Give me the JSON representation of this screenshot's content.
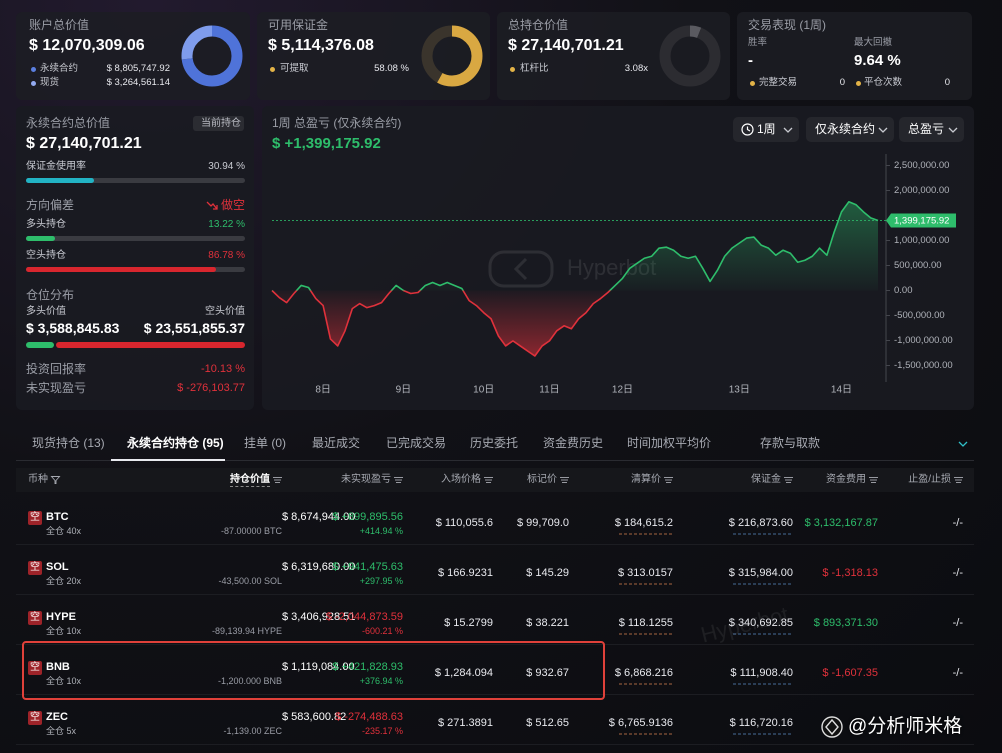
{
  "account": {
    "title": "账户总价值",
    "value": "$ 12,070,309.06",
    "perp_label": "永续合约",
    "perp_value": "$ 8,805,747.92",
    "spot_label": "现货",
    "spot_value": "$ 3,264,561.14"
  },
  "margin": {
    "title": "可用保证金",
    "value": "$ 5,114,376.08",
    "withdrawable_label": "可提取",
    "withdrawable": {
      "value": 58.08,
      "label": "58.08 %"
    }
  },
  "position": {
    "title": "总持仓价值",
    "value": "$ 27,140,701.21",
    "leverage_label": "杠杆比",
    "leverage": "3.08x"
  },
  "performance": {
    "title": "交易表现 (1周)",
    "win_rate_label": "胜率",
    "win_rate": "-",
    "drawdown_label": "最大回撤",
    "drawdown": "9.64 %",
    "trades_label": "完整交易",
    "trades": 0,
    "closes_label": "平仓次数",
    "closes": 0
  },
  "perp": {
    "title": "永续合约总价值",
    "badge": "当前持仓",
    "value": "$ 27,140,701.21",
    "margin_usage_label": "保证金使用率",
    "margin_usage": {
      "value": 30.94,
      "label": "30.94 %"
    },
    "bias_label": "方向偏差",
    "bias": "做空",
    "long_label": "多头持仓",
    "long": {
      "value": 13.22,
      "label": "13.22 %"
    },
    "short_label": "空头持仓",
    "short": {
      "value": 86.78,
      "label": "86.78 %"
    },
    "dist_title": "仓位分布",
    "long_value_label": "多头价值",
    "long_value": "$ 3,588,845.83",
    "short_value_label": "空头价值",
    "short_value": "$ 23,551,855.37",
    "roi_label": "投资回报率",
    "roi": "-10.13 %",
    "upnl_label": "未实现盈亏",
    "upnl": "$ -276,103.77"
  },
  "pnl_chart": {
    "type": "area",
    "title": "1周 总盈亏 (仅永续合约)",
    "total": "$ +1,399,175.92",
    "controls": [
      "1周",
      "仅永续合约",
      "总盈亏"
    ],
    "watermark": "Hyperbot",
    "up_color": "#2ebd6b",
    "down_color": "#e0313b",
    "categories": [
      null,
      null,
      null,
      null,
      null,
      null,
      null,
      "8日",
      null,
      null,
      null,
      null,
      null,
      null,
      null,
      null,
      null,
      null,
      "9日",
      null,
      null,
      null,
      null,
      null,
      null,
      null,
      null,
      null,
      null,
      "10日",
      null,
      null,
      null,
      null,
      null,
      null,
      null,
      null,
      "11日",
      null,
      null,
      null,
      null,
      null,
      null,
      null,
      null,
      null,
      "12日",
      null,
      null,
      null,
      null,
      null,
      null,
      null,
      null,
      null,
      null,
      null,
      null,
      null,
      null,
      null,
      "13日",
      null,
      null,
      null,
      null,
      null,
      null,
      null,
      null,
      null,
      null,
      null,
      null,
      null,
      "14日",
      null,
      null,
      null,
      null,
      null
    ],
    "values": [
      0,
      -141000,
      -242000,
      -60000,
      101000,
      60000,
      -161000,
      -302000,
      -968000,
      -1109000,
      -806000,
      -363000,
      -262000,
      -343000,
      -302000,
      -242000,
      -60000,
      101000,
      0,
      -60000,
      -40000,
      101000,
      161000,
      101000,
      161000,
      101000,
      40000,
      -202000,
      -302000,
      -444000,
      -565000,
      -907000,
      -1109000,
      -1008000,
      -1109000,
      -1210000,
      -1310000,
      -1109000,
      -1008000,
      -806000,
      -706000,
      -766000,
      -565000,
      -444000,
      -262000,
      -161000,
      -40000,
      101000,
      242000,
      444000,
      544000,
      645000,
      685000,
      847000,
      867000,
      806000,
      685000,
      645000,
      685000,
      444000,
      181000,
      403000,
      685000,
      847000,
      948000,
      1048000,
      1069000,
      907000,
      847000,
      706000,
      806000,
      746000,
      565000,
      605000,
      685000,
      847000,
      706000,
      1169000,
      1573000,
      1774000,
      1714000,
      1573000,
      1452000,
      1399175.92
    ],
    "current_label": "1,399,175.92",
    "ylim": [
      -1750000,
      2650000
    ],
    "yticks": [
      {
        "value": 2500000,
        "label": "2,500,000.00"
      },
      {
        "value": 2000000,
        "label": "2,000,000.00"
      },
      {
        "value": 1000000,
        "label": "1,000,000.00"
      },
      {
        "value": 500000,
        "label": "500,000.00"
      },
      {
        "value": 0,
        "label": "0.00"
      },
      {
        "value": -500000,
        "label": "-500,000.00"
      },
      {
        "value": -1000000,
        "label": "-1,000,000.00"
      },
      {
        "value": -1500000,
        "label": "-1,500,000.00"
      }
    ]
  },
  "table": {
    "tabs": [
      "现货持仓 (13)",
      "永续合约持仓 (95)",
      "挂单 (0)",
      "最近成交",
      "已完成交易",
      "历史委托",
      "资金费历史",
      "时间加权平均价",
      "存款与取款"
    ],
    "active_tab": 1,
    "headers": [
      "币种",
      "持仓价值",
      "未实现盈亏",
      "入场价格",
      "标记价",
      "清算价",
      "保证金",
      "资金费用",
      "止盈/止损"
    ],
    "watermark": "Hyperbot",
    "rows": [
      {
        "side": "空",
        "coin": "BTC",
        "mode": "全仓 40x",
        "value": "$ 8,674,944.00",
        "size": "-87.00000 BTC",
        "pnl": "$ +899,895.56",
        "pnl_pct": "+414.94 %",
        "entry": "$ 110,055.6",
        "mark": "$ 99,709.0",
        "liq": "$ 184,615.2",
        "margin": "$ 216,873.60",
        "funding": "$ 3,132,167.87",
        "tpsl": "-/-"
      },
      {
        "side": "空",
        "coin": "SOL",
        "mode": "全仓 20x",
        "value": "$ 6,319,680.00",
        "size": "-43,500.00 SOL",
        "pnl": "$ +941,475.63",
        "pnl_pct": "+297.95 %",
        "entry": "$ 166.9231",
        "mark": "$ 145.29",
        "liq": "$ 313.0157",
        "margin": "$ 315,984.00",
        "funding": "$ -1,318.13",
        "tpsl": "-/-"
      },
      {
        "side": "空",
        "coin": "HYPE",
        "mode": "全仓 10x",
        "value": "$ 3,406,928.51",
        "size": "-89,139.94 HYPE",
        "pnl": "$ -2,044,873.59",
        "pnl_pct": "-600.21 %",
        "entry": "$ 15.2799",
        "mark": "$ 38.221",
        "liq": "$ 118.1255",
        "margin": "$ 340,692.85",
        "funding": "$ 893,371.30",
        "tpsl": "-/-"
      },
      {
        "side": "空",
        "coin": "BNB",
        "mode": "全仓 10x",
        "value": "$ 1,119,084.00",
        "size": "-1,200.000 BNB",
        "pnl": "$ +421,828.93",
        "pnl_pct": "+376.94 %",
        "entry": "$ 1,284.094",
        "mark": "$ 932.67",
        "liq": "$ 6,868.216",
        "margin": "$ 111,908.40",
        "funding": "$ -1,607.35",
        "tpsl": "-/-"
      },
      {
        "side": "空",
        "coin": "ZEC",
        "mode": "全仓 5x",
        "value": "$ 583,600.82",
        "size": "-1,139.00 ZEC",
        "pnl": "$ -274,488.63",
        "pnl_pct": "-235.17 %",
        "entry": "$ 271.3891",
        "mark": "$ 512.65",
        "liq": "$ 6,765.9136",
        "margin": "$ 116,720.16"
      }
    ]
  },
  "credit": "@分析师米格"
}
